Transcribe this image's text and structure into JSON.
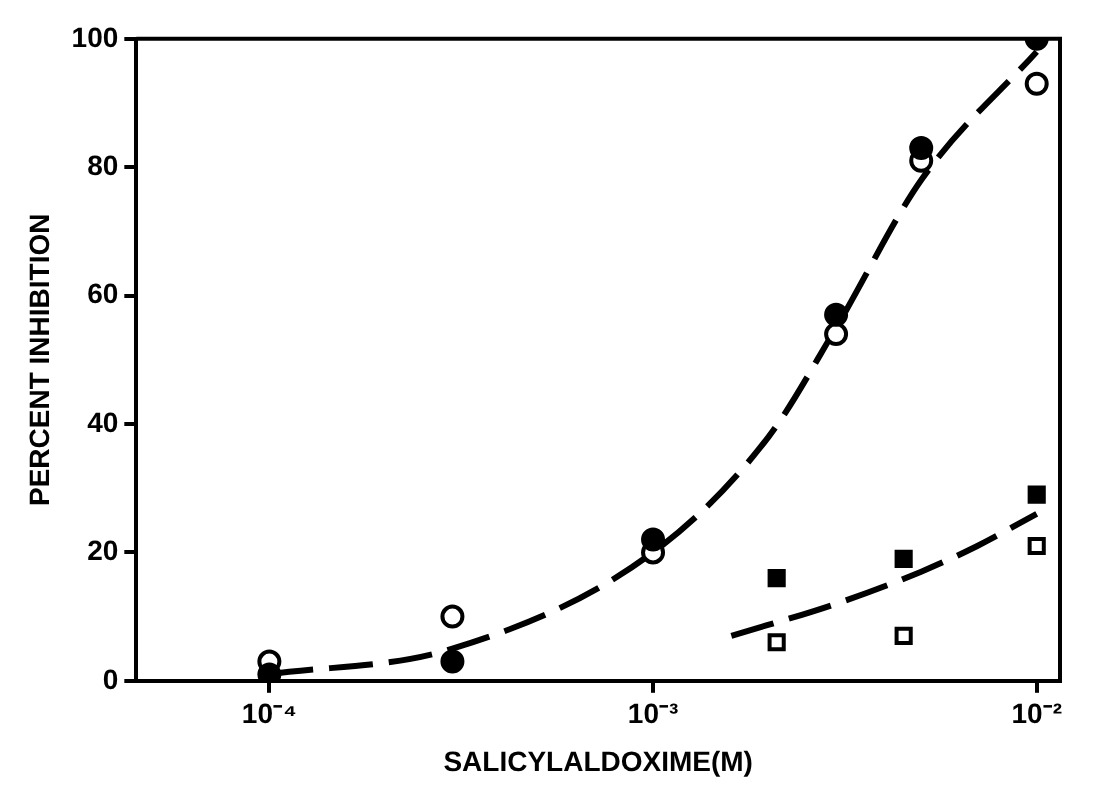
{
  "chart_data": {
    "type": "scatter",
    "xlabel": "SALICYLALDOXIME(M)",
    "ylabel": "PERCENT INHIBITION",
    "log": "x",
    "xlim": [
      4.5e-05,
      0.0115
    ],
    "xticks": [
      {
        "value": 0.0001,
        "label": "10⁻⁴"
      },
      {
        "value": 0.001,
        "label": "10⁻³"
      },
      {
        "value": 0.01,
        "label": "10⁻²"
      }
    ],
    "ylim": [
      0,
      100
    ],
    "yticks": [
      0,
      20,
      40,
      60,
      80,
      100
    ],
    "grid": false,
    "legend": false,
    "series": [
      {
        "type": "scatter",
        "marker": "circle",
        "color": "#000000",
        "x": [
          0.0001,
          0.0003,
          0.001,
          0.003,
          0.005,
          0.01
        ],
        "values": [
          1,
          3,
          22,
          57,
          83,
          100
        ]
      },
      {
        "type": "scatter",
        "marker": "circle",
        "color": "#ffffff",
        "x": [
          0.0001,
          0.0003,
          0.001,
          0.003,
          0.005,
          0.01
        ],
        "values": [
          3,
          10,
          20,
          54,
          81,
          93
        ]
      },
      {
        "type": "scatter",
        "marker": "square",
        "color": "#000000",
        "x": [
          0.0021,
          0.0045,
          0.01
        ],
        "values": [
          16,
          19,
          29
        ]
      },
      {
        "type": "scatter",
        "marker": "square",
        "color": "#ffffff",
        "x": [
          0.0021,
          0.0045,
          0.01
        ],
        "values": [
          6,
          7,
          21
        ]
      },
      {
        "type": "line",
        "marker": "none",
        "line_style": "dashed",
        "color": "#000000",
        "x": [
          0.0001,
          0.0003,
          0.001,
          0.002,
          0.003,
          0.005,
          0.01
        ],
        "values": [
          1,
          5,
          20,
          38,
          55,
          78,
          98
        ]
      },
      {
        "type": "line",
        "marker": "none",
        "line_style": "dashed",
        "color": "#000000",
        "x": [
          0.0016,
          0.003,
          0.005,
          0.007,
          0.01
        ],
        "values": [
          7,
          12,
          17,
          21,
          26
        ]
      }
    ]
  }
}
